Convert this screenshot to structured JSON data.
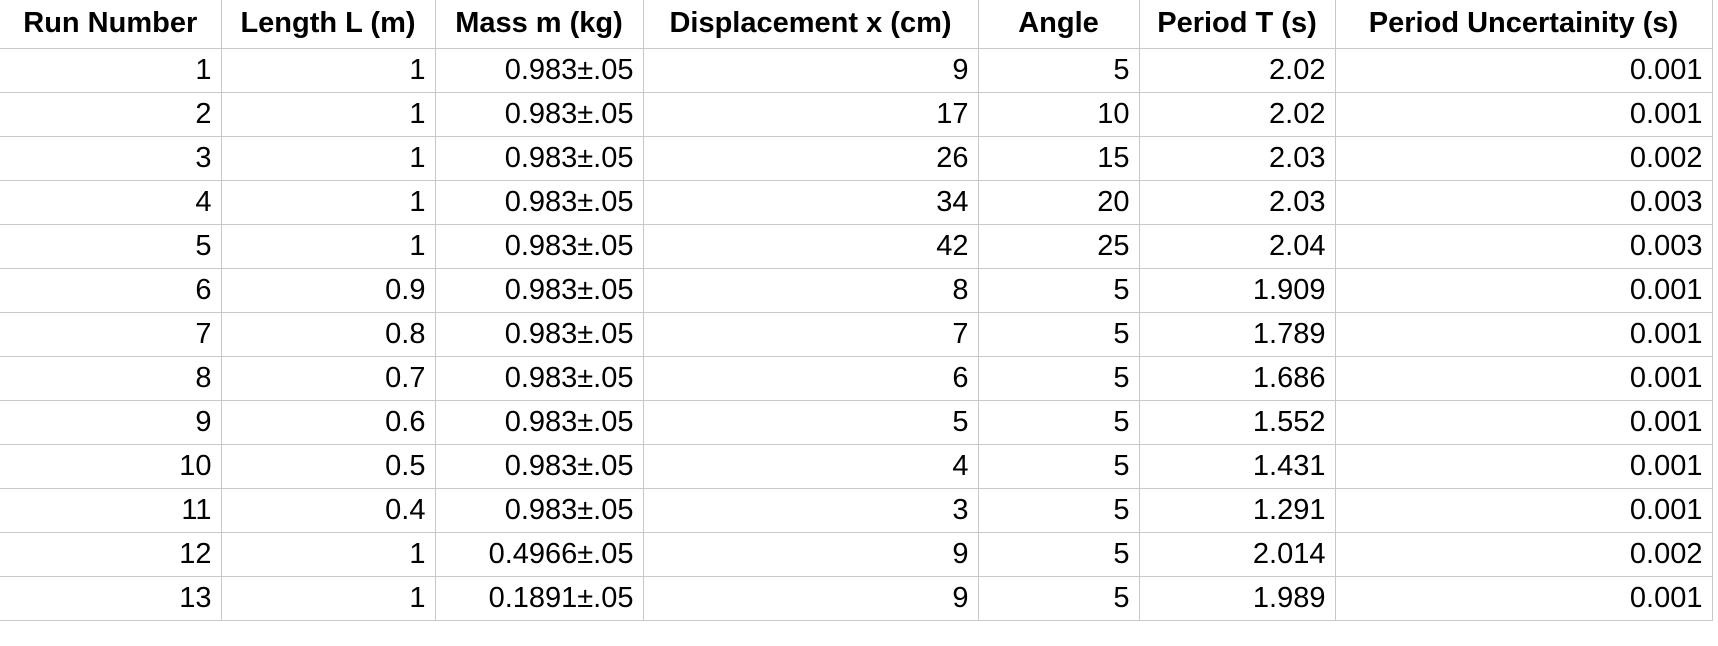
{
  "table": {
    "headers": [
      "Run Number",
      "Length L (m)",
      "Mass m (kg)",
      "Displacement x (cm)",
      "Angle",
      "Period T (s)",
      "Period Uncertainity (s)"
    ],
    "rows": [
      [
        "1",
        "1",
        "0.983±.05",
        "9",
        "5",
        "2.02",
        "0.001"
      ],
      [
        "2",
        "1",
        "0.983±.05",
        "17",
        "10",
        "2.02",
        "0.001"
      ],
      [
        "3",
        "1",
        "0.983±.05",
        "26",
        "15",
        "2.03",
        "0.002"
      ],
      [
        "4",
        "1",
        "0.983±.05",
        "34",
        "20",
        "2.03",
        "0.003"
      ],
      [
        "5",
        "1",
        "0.983±.05",
        "42",
        "25",
        "2.04",
        "0.003"
      ],
      [
        "6",
        "0.9",
        "0.983±.05",
        "8",
        "5",
        "1.909",
        "0.001"
      ],
      [
        "7",
        "0.8",
        "0.983±.05",
        "7",
        "5",
        "1.789",
        "0.001"
      ],
      [
        "8",
        "0.7",
        "0.983±.05",
        "6",
        "5",
        "1.686",
        "0.001"
      ],
      [
        "9",
        "0.6",
        "0.983±.05",
        "5",
        "5",
        "1.552",
        "0.001"
      ],
      [
        "10",
        "0.5",
        "0.983±.05",
        "4",
        "5",
        "1.431",
        "0.001"
      ],
      [
        "11",
        "0.4",
        "0.983±.05",
        "3",
        "5",
        "1.291",
        "0.001"
      ],
      [
        "12",
        "1",
        "0.4966±.05",
        "9",
        "5",
        "2.014",
        "0.002"
      ],
      [
        "13",
        "1",
        "0.1891±.05",
        "9",
        "5",
        "1.989",
        "0.001"
      ]
    ]
  }
}
